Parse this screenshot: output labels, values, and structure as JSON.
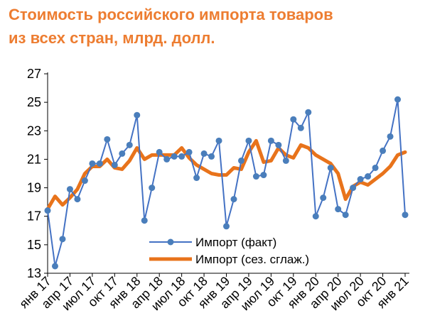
{
  "title_line1": "Стоимость российского импорта товаров",
  "title_line2": "из всех стран, млрд. долл.",
  "colors": {
    "title": "#ED7D31",
    "actual_line": "#4472C4",
    "actual_marker": "#4A7EBB",
    "smoothed": "#E8731B"
  },
  "chart_data": {
    "type": "line",
    "title": "Стоимость российского импорта товаров из всех стран, млрд. долл.",
    "ylim": [
      13,
      27
    ],
    "yticks": [
      "13",
      "15",
      "17",
      "19",
      "21",
      "23",
      "25",
      "27"
    ],
    "grid": false,
    "legend_position": "bottom-center",
    "xtick_labels": [
      "янв 17",
      "апр 17",
      "июл 17",
      "окт 17",
      "янв 18",
      "апр 18",
      "июл 18",
      "окт 18",
      "янв 19",
      "апр 19",
      "июл 19",
      "окт 19",
      "янв 20",
      "апр 20",
      "июл 20",
      "окт 20",
      "янв 21"
    ],
    "series": [
      {
        "name": "Импорт (факт)",
        "values": [
          17.4,
          13.5,
          15.4,
          18.9,
          18.2,
          19.5,
          20.7,
          20.7,
          22.4,
          20.6,
          21.4,
          22.0,
          24.1,
          16.7,
          19.0,
          21.5,
          21.0,
          21.2,
          21.2,
          21.5,
          19.7,
          21.4,
          21.2,
          22.3,
          16.3,
          18.2,
          20.9,
          22.3,
          19.8,
          19.9,
          22.3,
          22.0,
          20.9,
          23.8,
          23.2,
          24.3,
          17.0,
          18.3,
          20.4,
          17.5,
          17.1,
          19.0,
          19.6,
          19.8,
          20.4,
          21.6,
          22.6,
          25.2,
          17.1
        ]
      },
      {
        "name": "Импорт (сез. сглаж.)",
        "values": [
          17.5,
          18.4,
          17.8,
          18.3,
          18.9,
          20.0,
          20.5,
          20.5,
          21.0,
          20.4,
          20.3,
          20.9,
          21.8,
          21.0,
          21.3,
          21.3,
          21.3,
          21.3,
          21.8,
          21.1,
          20.6,
          20.3,
          20.0,
          19.9,
          19.9,
          20.4,
          20.3,
          21.5,
          22.3,
          20.8,
          20.9,
          21.8,
          21.3,
          21.1,
          22.0,
          21.8,
          21.3,
          21.0,
          20.7,
          20.0,
          18.2,
          19.1,
          19.4,
          19.2,
          19.6,
          20.0,
          20.5,
          21.3,
          21.5
        ]
      }
    ]
  }
}
